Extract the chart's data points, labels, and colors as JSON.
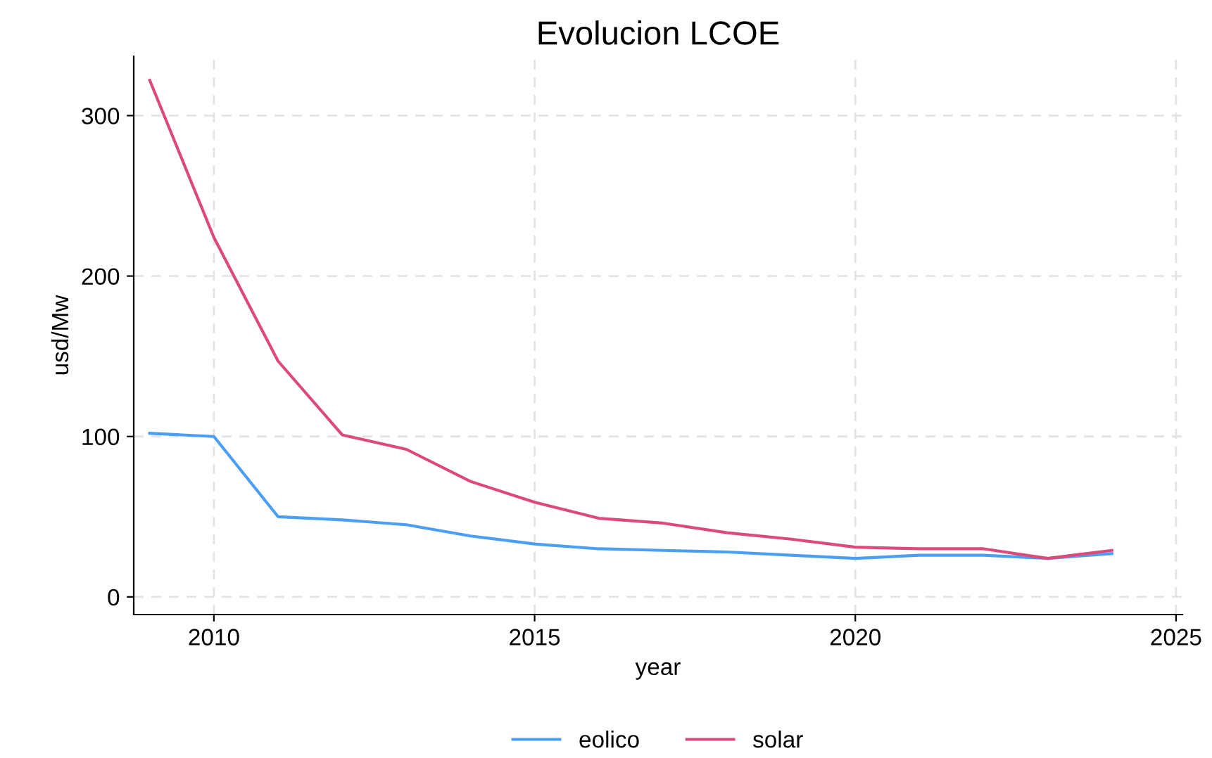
{
  "chart_data": {
    "type": "line",
    "title": "Evolucion LCOE",
    "xlabel": "year",
    "ylabel": "usd/Mw",
    "x": [
      2009,
      2010,
      2011,
      2012,
      2013,
      2014,
      2015,
      2016,
      2017,
      2018,
      2019,
      2020,
      2021,
      2022,
      2023,
      2024
    ],
    "series": [
      {
        "name": "eolico",
        "color": "#4a9ff5",
        "values": [
          102,
          100,
          50,
          48,
          45,
          38,
          33,
          30,
          29,
          28,
          26,
          24,
          26,
          26,
          24,
          27
        ]
      },
      {
        "name": "solar",
        "color": "#dc4a78",
        "values": [
          322,
          224,
          147,
          101,
          92,
          72,
          59,
          49,
          46,
          40,
          36,
          31,
          30,
          30,
          24,
          29
        ]
      }
    ],
    "xlim": [
      2008.75,
      2025.1
    ],
    "ylim": [
      -11,
      337
    ],
    "xticks": [
      2010,
      2015,
      2020,
      2025
    ],
    "yticks": [
      0,
      100,
      200,
      300
    ],
    "grid": true,
    "legend": "bottom",
    "line_style": "solid",
    "marker": "none"
  }
}
